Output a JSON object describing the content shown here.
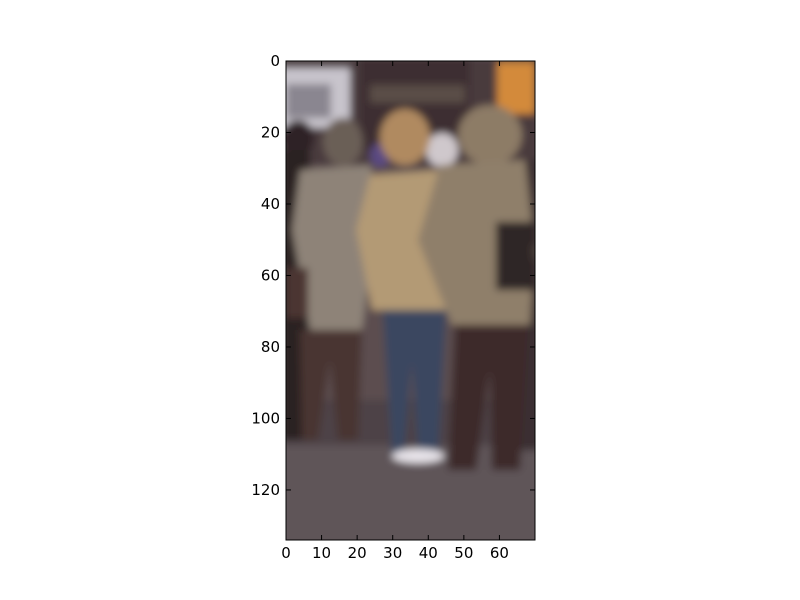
{
  "image": {
    "description_hidden": false,
    "extent": {
      "x": [
        0,
        70
      ],
      "y": [
        0,
        134
      ]
    },
    "colors": {
      "ground": "#5f5458",
      "background_top": "#4a3a3c",
      "storefront": "#3d2f30",
      "white_van": "#c8c4cc",
      "orange_poster": "#d38a3b",
      "tan_coat": "#b39a74",
      "grey_coat": "#8e8378",
      "khaki_coat": "#8f7f6a",
      "jeans": "#3a4660",
      "brown_trousers": "#4a3630",
      "dark_trousers": "#3c2b2b",
      "blond_hair": "#b08a60",
      "white_shoes": "#e8e4ea"
    }
  },
  "axes": {
    "x_ticks": [
      0,
      10,
      20,
      30,
      40,
      50,
      60
    ],
    "y_ticks": [
      0,
      20,
      40,
      60,
      80,
      100,
      120
    ]
  }
}
